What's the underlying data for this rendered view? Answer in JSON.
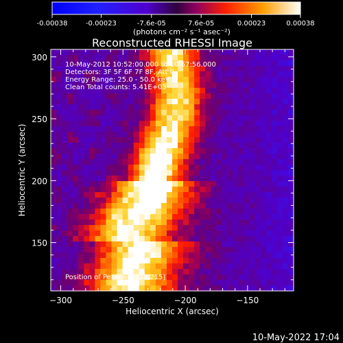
{
  "chart_data": {
    "type": "heatmap",
    "title": "Reconstructed RHESSI Image",
    "xlabel": "Heliocentric X (arcsec)",
    "ylabel": "Heliocentric Y (arcsec)",
    "xlim": [
      -308,
      -113
    ],
    "ylim": [
      111,
      306
    ],
    "xticks": [
      -300,
      -250,
      -200,
      -150
    ],
    "yticks": [
      150,
      200,
      250,
      300
    ],
    "colorbar": {
      "ticks": [
        "-0.00038",
        "-0.00023",
        "-7.6e-05",
        "7.6e-05",
        "0.00023",
        "0.00038"
      ],
      "values": [
        -0.00038,
        -0.00023,
        -7.6e-05,
        7.6e-05,
        0.00023,
        0.00038
      ],
      "unit_label": "(photons cm⁻² s⁻¹ asec⁻²)",
      "range": [
        -0.00038,
        0.00038
      ]
    },
    "annotations": [
      "10-May-2012 10:52:00.000 to 10:57:56.000",
      "Detectors: 3F 5F 6F 7F 8F, Att 0",
      "Energy Range: 25.0 - 50.0 keV",
      "Clean     Total counts: 5.41E+03"
    ],
    "peak_label": "Position of Peak = [-228,215]",
    "peak": [
      -228,
      215
    ]
  },
  "footer": {
    "timestamp": "10-May-2022 17:04"
  }
}
